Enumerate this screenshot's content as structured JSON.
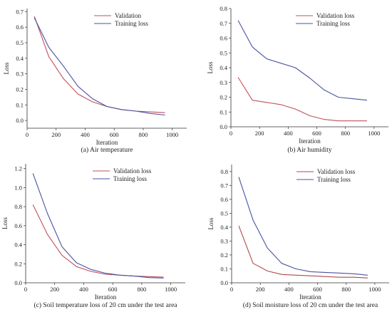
{
  "chart_data": [
    {
      "type": "line",
      "caption": "(a) Air temperature",
      "xlabel": "Iteration",
      "ylabel": "Loss",
      "xlim": [
        0,
        1100
      ],
      "ylim": [
        -0.05,
        0.72
      ],
      "xticks": [
        0,
        200,
        400,
        600,
        800,
        1000
      ],
      "yticks": [
        0.0,
        0.1,
        0.2,
        0.3,
        0.4,
        0.5,
        0.6,
        0.7
      ],
      "ytick_labels": [
        "0.0",
        "0.1",
        "0.2",
        "0.3",
        "0.4",
        "0.5",
        "0.6",
        "0.7"
      ],
      "legend_position": "top-right",
      "series": [
        {
          "name": "Validation",
          "color": "#c0505a",
          "x": [
            50,
            150,
            250,
            350,
            450,
            550,
            650,
            750,
            850,
            950
          ],
          "y": [
            0.67,
            0.41,
            0.27,
            0.17,
            0.12,
            0.09,
            0.07,
            0.06,
            0.055,
            0.05
          ]
        },
        {
          "name": "Training loss",
          "color": "#4a52a0",
          "x": [
            50,
            150,
            250,
            350,
            450,
            550,
            650,
            750,
            850,
            950
          ],
          "y": [
            0.66,
            0.47,
            0.35,
            0.22,
            0.14,
            0.09,
            0.07,
            0.06,
            0.045,
            0.035
          ]
        }
      ]
    },
    {
      "type": "line",
      "caption": "(b) Air humidity",
      "xlabel": "Iteration",
      "ylabel": "Loss",
      "xlim": [
        0,
        1100
      ],
      "ylim": [
        0,
        0.8
      ],
      "xticks": [
        0,
        200,
        400,
        600,
        800,
        1000
      ],
      "yticks": [
        0.0,
        0.1,
        0.2,
        0.3,
        0.4,
        0.5,
        0.6,
        0.7,
        0.8
      ],
      "ytick_labels": [
        "0.0",
        "0.1",
        "0.2",
        "0.3",
        "0.4",
        "0.5",
        "0.6",
        "0.7",
        "0.8"
      ],
      "legend_position": "top-right",
      "series": [
        {
          "name": "Validation loss",
          "color": "#c0505a",
          "x": [
            50,
            150,
            250,
            350,
            450,
            550,
            650,
            750,
            850,
            950
          ],
          "y": [
            0.335,
            0.18,
            0.165,
            0.15,
            0.12,
            0.075,
            0.05,
            0.04,
            0.04,
            0.04
          ]
        },
        {
          "name": "Training loss",
          "color": "#4a52a0",
          "x": [
            50,
            150,
            250,
            350,
            450,
            550,
            650,
            750,
            850,
            950
          ],
          "y": [
            0.72,
            0.54,
            0.46,
            0.43,
            0.4,
            0.33,
            0.25,
            0.2,
            0.19,
            0.18
          ]
        }
      ]
    },
    {
      "type": "line",
      "caption": "(c) Soil temperature loss of 20 cm under the test area",
      "xlabel": "Iteration",
      "ylabel": "Loss",
      "xlim": [
        0,
        1100
      ],
      "ylim": [
        0,
        1.25
      ],
      "xticks": [
        0,
        200,
        400,
        600,
        800,
        1000
      ],
      "yticks": [
        0.0,
        0.2,
        0.4,
        0.6,
        0.8,
        1.0,
        1.2
      ],
      "ytick_labels": [
        "0.0",
        "0.2",
        "0.4",
        "0.6",
        "0.8",
        "1.0",
        "1.2"
      ],
      "legend_position": "top-right",
      "series": [
        {
          "name": "Validation loss",
          "color": "#c0505a",
          "x": [
            50,
            150,
            250,
            350,
            450,
            550,
            650,
            750,
            850,
            950
          ],
          "y": [
            0.82,
            0.51,
            0.29,
            0.17,
            0.12,
            0.09,
            0.08,
            0.07,
            0.065,
            0.06
          ]
        },
        {
          "name": "Training loss",
          "color": "#4a52a0",
          "x": [
            50,
            150,
            250,
            350,
            450,
            550,
            650,
            750,
            850,
            950
          ],
          "y": [
            1.15,
            0.73,
            0.38,
            0.21,
            0.14,
            0.1,
            0.08,
            0.07,
            0.055,
            0.05
          ]
        }
      ]
    },
    {
      "type": "line",
      "caption": "(d) Soil moisture loss of 20 cm under the test area",
      "xlabel": "Iteration",
      "ylabel": "Loss",
      "xlim": [
        0,
        1100
      ],
      "ylim": [
        0,
        0.85
      ],
      "xticks": [
        0,
        200,
        400,
        600,
        800,
        1000
      ],
      "yticks": [
        0.0,
        0.1,
        0.2,
        0.3,
        0.4,
        0.5,
        0.6,
        0.7,
        0.8
      ],
      "ytick_labels": [
        "0.0",
        "0.1",
        "0.2",
        "0.3",
        "0.4",
        "0.5",
        "0.6",
        "0.7",
        "0.8"
      ],
      "legend_position": "top-right",
      "series": [
        {
          "name": "Validation loss",
          "color": "#b04a4a",
          "x": [
            50,
            150,
            250,
            350,
            450,
            550,
            650,
            750,
            850,
            950
          ],
          "y": [
            0.41,
            0.14,
            0.085,
            0.06,
            0.055,
            0.05,
            0.045,
            0.04,
            0.04,
            0.035
          ]
        },
        {
          "name": "Training loss",
          "color": "#4a52a0",
          "x": [
            50,
            150,
            250,
            350,
            450,
            550,
            650,
            750,
            850,
            950
          ],
          "y": [
            0.76,
            0.45,
            0.25,
            0.14,
            0.1,
            0.08,
            0.075,
            0.07,
            0.065,
            0.055
          ]
        }
      ]
    }
  ]
}
